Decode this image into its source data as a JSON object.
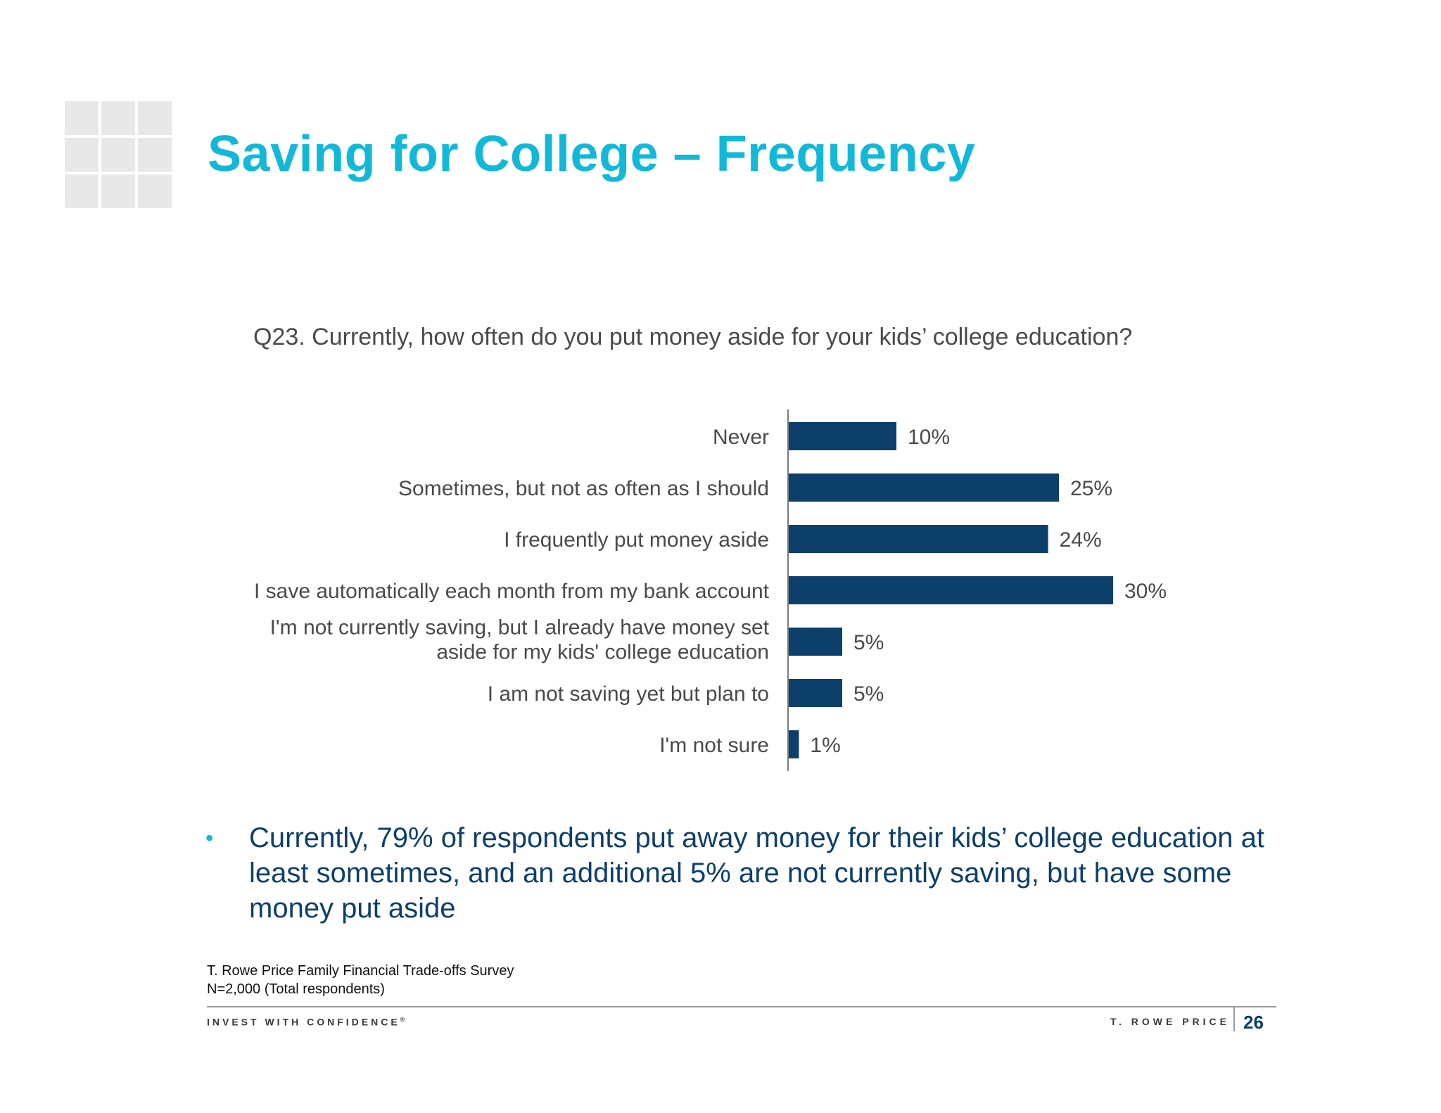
{
  "slide": {
    "title": "Saving for College – Frequency",
    "question": "Q23. Currently, how often do you put money aside for your kids’ college education?",
    "bullet": "Currently, 79% of respondents put away money for their kids’ college education at least sometimes, and an additional 5% are not currently saving, but have some money put aside",
    "source_line1": "T. Rowe Price Family Financial Trade-offs Survey",
    "source_line2": "N=2,000 (Total respondents)",
    "tagline": "INVEST WITH CONFIDENCE",
    "tagline_mark": "®",
    "brand": "T. ROWE PRICE",
    "page_number": "26"
  },
  "colors": {
    "title": "#12b8d8",
    "bar": "#0d3f6b",
    "text": "#4a4a4a",
    "bullet_text": "#0d3f6b",
    "logo_tile": "#e8e8e8"
  },
  "chart_data": {
    "type": "bar",
    "orientation": "horizontal",
    "categories": [
      [
        "Never"
      ],
      [
        "Sometimes, but not as often as I should"
      ],
      [
        "I frequently put money aside"
      ],
      [
        "I save automatically each month from my bank account"
      ],
      [
        "I'm not currently saving, but I already have money set",
        "aside for my kids' college education"
      ],
      [
        "I am not saving yet but plan to"
      ],
      [
        "I'm not sure"
      ]
    ],
    "values": [
      10,
      25,
      24,
      30,
      5,
      5,
      1
    ],
    "data_labels": [
      "10%",
      "25%",
      "24%",
      "30%",
      "5%",
      "5%",
      "1%"
    ],
    "xlim": [
      0,
      30
    ],
    "grid": false,
    "legend": "none"
  }
}
